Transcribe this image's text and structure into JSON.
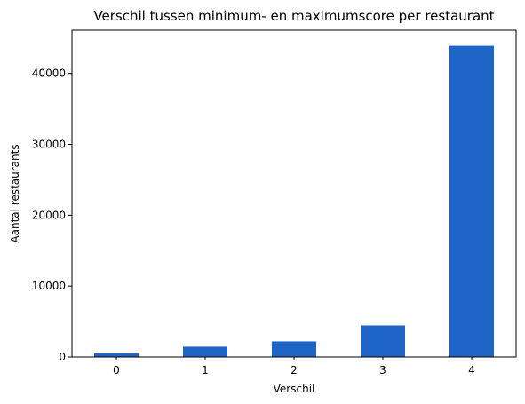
{
  "chart_data": {
    "type": "bar",
    "title": "Verschil tussen minimum- en maximumscore per restaurant",
    "xlabel": "Verschil",
    "ylabel": "Aantal restaurants",
    "categories": [
      "0",
      "1",
      "2",
      "3",
      "4"
    ],
    "values": [
      500,
      1450,
      2200,
      4450,
      43900
    ],
    "ylim": [
      0,
      46100
    ],
    "yticks": [
      0,
      10000,
      20000,
      30000,
      40000
    ],
    "ytick_labels": [
      "0",
      "10000",
      "20000",
      "30000",
      "40000"
    ],
    "bar_color": "#1f65c7",
    "grid": false,
    "legend": "none"
  }
}
